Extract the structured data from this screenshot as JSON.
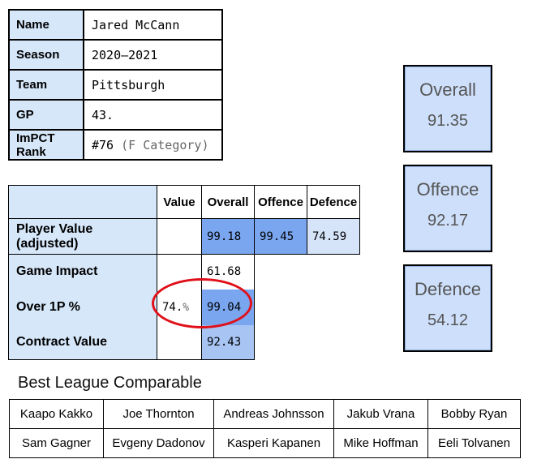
{
  "info": {
    "rows": [
      {
        "key": "Name",
        "value": "Jared McCann"
      },
      {
        "key": "Season",
        "value": "2020–2021"
      },
      {
        "key": "Team",
        "value": "Pittsburgh"
      },
      {
        "key": "GP",
        "value": "43."
      },
      {
        "key": "ImPCT Rank",
        "value": "#76",
        "suffix": "(F Category)"
      }
    ]
  },
  "stats": {
    "headers": [
      "Value",
      "Overall",
      "Offence",
      "Defence"
    ],
    "player_value": {
      "label": "Player Value (adjusted)",
      "overall": "99.18",
      "offence": "99.45",
      "defence": "74.59"
    },
    "game_impact": {
      "label": "Game Impact",
      "overall": "61.68"
    },
    "over1p": {
      "label": "Over 1P %",
      "value": "74.",
      "value_suffix": "%",
      "overall": "99.04"
    },
    "contract": {
      "label": "Contract Value",
      "overall": "92.43"
    }
  },
  "scores": [
    {
      "title": "Overall",
      "value": "91.35"
    },
    {
      "title": "Offence",
      "value": "92.17"
    },
    {
      "title": "Defence",
      "value": "54.12"
    }
  ],
  "comparable": {
    "title": "Best League Comparable",
    "rows": [
      [
        "Kaapo Kakko",
        "Joe Thornton",
        "Andreas Johnsson",
        "Jakub Vrana",
        "Bobby Ryan"
      ],
      [
        "Sam Gagner",
        "Evgeny Dadonov",
        "Kasperi Kapanen",
        "Mike Hoffman",
        "Eeli Tolvanen"
      ]
    ]
  },
  "colors": {
    "highlight_ring": "#e0101a",
    "label_bg": "#d6e7fa",
    "cell_strong": "#7aa6f0"
  }
}
